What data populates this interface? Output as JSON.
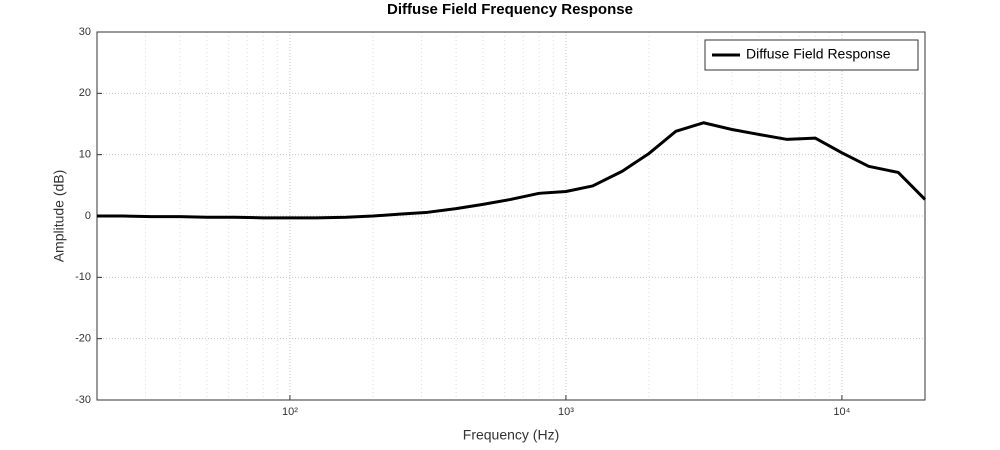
{
  "chart_data": {
    "type": "line",
    "title": "Diffuse Field Frequency Response",
    "x_label": "Frequency (Hz)",
    "y_label": "Amplitude (dB)",
    "x": [
      20,
      25,
      31.5,
      40,
      50,
      63,
      80,
      100,
      125,
      160,
      200,
      250,
      315,
      400,
      500,
      630,
      800,
      1000,
      1250,
      1600,
      2000,
      2500,
      3150,
      4000,
      5000,
      6300,
      8000,
      10000,
      12500,
      16000,
      20000
    ],
    "series": [
      {
        "name": "Diffuse Field Response",
        "color": "#000000",
        "values": [
          0,
          0,
          -0.1,
          -0.1,
          -0.2,
          -0.2,
          -0.3,
          -0.3,
          -0.3,
          -0.2,
          0,
          0.3,
          0.6,
          1.2,
          1.9,
          2.7,
          3.7,
          4.0,
          4.9,
          7.3,
          10.2,
          13.8,
          15.2,
          14.1,
          13.3,
          12.5,
          12.7,
          10.3,
          8.1,
          7.1,
          2.7
        ]
      }
    ],
    "xlim": [
      20,
      20000
    ],
    "ylim": [
      -30,
      30
    ],
    "xticks": [
      {
        "value": 100,
        "label": "10²"
      },
      {
        "value": 1000,
        "label": "10³"
      },
      {
        "value": 10000,
        "label": "10⁴"
      }
    ],
    "yticks": [
      -30,
      -20,
      -10,
      0,
      10,
      20,
      30
    ],
    "xscale": "log",
    "grid": true,
    "minor_grid": true,
    "legend": "northeast"
  }
}
